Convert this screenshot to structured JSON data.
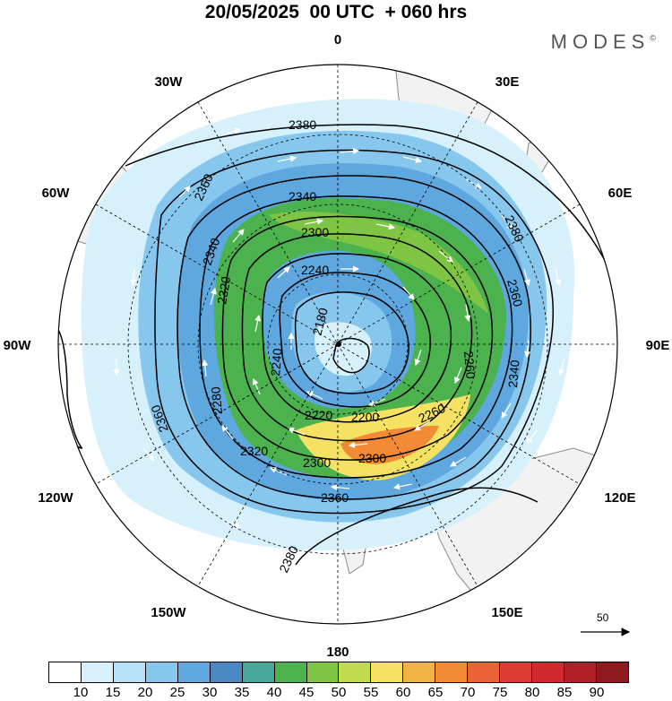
{
  "title": "20/05/2025  00 UTC  + 060 hrs",
  "brand": "MODES",
  "brand_mark": "©",
  "longitude_labels": {
    "top": "0",
    "top_left": "30W",
    "top_right": "30E",
    "upper_left": "60W",
    "upper_right": "60E",
    "left": "90W",
    "right": "90E",
    "lower_left": "120W",
    "lower_right": "120E",
    "bottom_left": "150W",
    "bottom_right": "150E",
    "bottom": "180"
  },
  "contour_labels": {
    "c2380_top": "2380",
    "c2360_left": "2360",
    "c2340_top": "2340",
    "c2300_top": "2300",
    "c2380_right": "2380",
    "c2340_left": "2340",
    "c2320_left": "2320",
    "c2240_center": "2240",
    "c2360_right": "2360",
    "c2180_center": "2180",
    "c2240_left": "2240",
    "c2260_right": "2260",
    "c2340_right": "2340",
    "c2280_left": "2280",
    "c2220_center": "2220",
    "c2200_center": "2200",
    "c2260_lower": "2260",
    "c2360_left_lower": "2360",
    "c2320_lower": "2320",
    "c2300_lower": "2300",
    "c2300_lower2": "2300",
    "c2360_lower": "2360",
    "c2380_lower": "2380"
  },
  "wind_speed_colorbar": {
    "colors": [
      "#ffffff",
      "#d6f0fc",
      "#b5e2f8",
      "#87c7ee",
      "#5ea7df",
      "#4a88c4",
      "#49a69a",
      "#4cb24e",
      "#7ec544",
      "#c2dc52",
      "#f5e262",
      "#f1b246",
      "#f28a36",
      "#ec6135",
      "#dd3c34",
      "#cf2a2d",
      "#b21e28",
      "#8e1a1f"
    ],
    "tick_labels": [
      "10",
      "15",
      "20",
      "25",
      "30",
      "35",
      "40",
      "45",
      "50",
      "55",
      "60",
      "65",
      "70",
      "75",
      "80",
      "85",
      "90"
    ]
  },
  "reference_vector": {
    "label": "50"
  }
}
